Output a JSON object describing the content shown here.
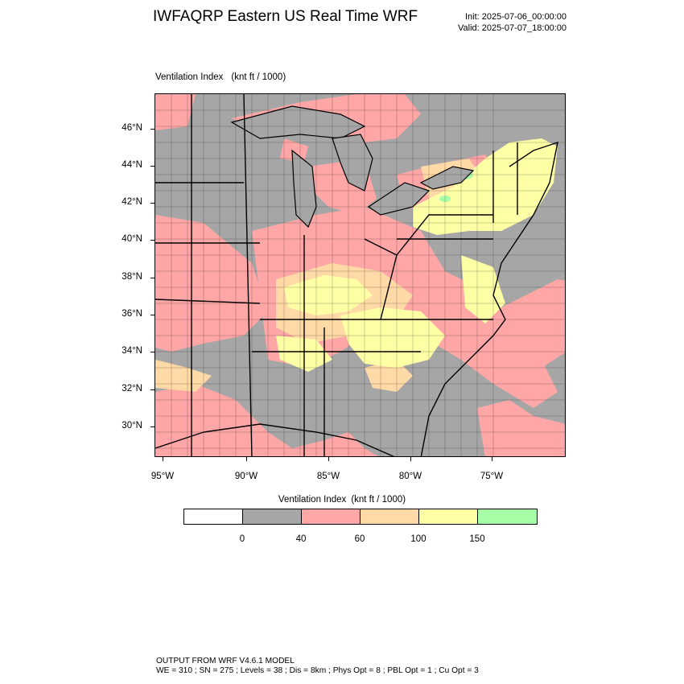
{
  "header": {
    "title": "IWFAQRP Eastern US Real Time WRF",
    "init": "Init: 2025-07-06_00:00:00",
    "valid": "Valid: 2025-07-07_18:00:00"
  },
  "map": {
    "field_name": "Ventilation Index",
    "field_units": "(knt ft / 1000)",
    "lat_labels": [
      "46°N",
      "44°N",
      "42°N",
      "40°N",
      "38°N",
      "36°N",
      "34°N",
      "32°N",
      "30°N"
    ],
    "lon_labels": [
      "95°W",
      "90°W",
      "85°W",
      "80°W",
      "75°W"
    ],
    "colors": {
      "land_low": "#a6a6a6",
      "c40_60": "#ffa6a6",
      "c60_100": "#ffd9a6",
      "c100_150": "#ffffa6",
      "c150_plus": "#a6ffa6",
      "boundary": "#000000"
    }
  },
  "colorbar": {
    "title": "Ventilation Index",
    "units": "(knt ft / 1000)",
    "colors": [
      "#ffffff",
      "#a6a6a6",
      "#ffa6a6",
      "#ffd9a6",
      "#ffffa6",
      "#a6ffa6"
    ],
    "labels": [
      "0",
      "40",
      "60",
      "100",
      "150"
    ]
  },
  "footer": {
    "line1": "OUTPUT FROM WRF V4.6.1 MODEL",
    "line2": "WE = 310 ; SN = 275 ; Levels = 38 ; Dis = 8km ; Phys Opt = 8 ; PBL Opt = 1 ; Cu Opt = 3"
  }
}
